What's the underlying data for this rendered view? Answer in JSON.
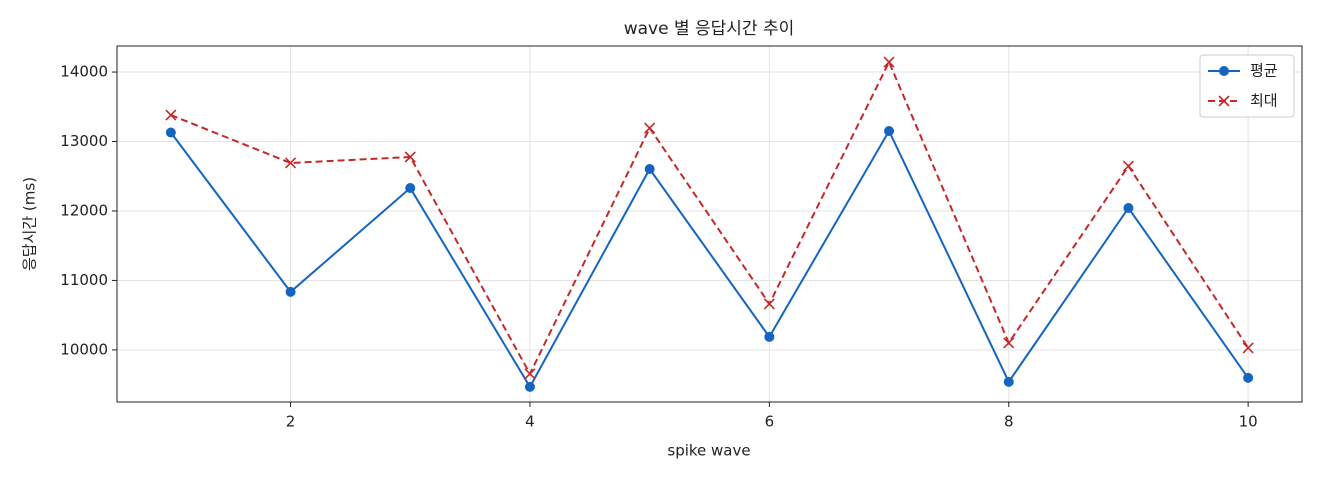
{
  "chart_data": {
    "type": "line",
    "title": "wave 별 응답시간 추이",
    "xlabel": "spike wave",
    "ylabel": "응답시간 (ms)",
    "x": [
      1,
      2,
      3,
      4,
      5,
      6,
      7,
      8,
      9,
      10
    ],
    "series": [
      {
        "name": "평균",
        "color": "#1565c0",
        "marker": "o",
        "linestyle": "solid",
        "values": [
          13130,
          10835,
          12330,
          9468,
          12604,
          10187,
          13151,
          9540,
          12043,
          9597
        ]
      },
      {
        "name": "최대",
        "color": "#c62828",
        "marker": "x",
        "linestyle": "dashed",
        "values": [
          13381,
          12691,
          12777,
          9655,
          13194,
          10662,
          14144,
          10101,
          12647,
          10029
        ]
      }
    ],
    "xlim": [
      0.55,
      10.45
    ],
    "xticks": [
      2,
      4,
      6,
      8,
      10
    ],
    "ylim": [
      9250,
      14375
    ],
    "yticks": [
      10000,
      11000,
      12000,
      13000,
      14000
    ],
    "grid": true,
    "legend": "upper right"
  }
}
